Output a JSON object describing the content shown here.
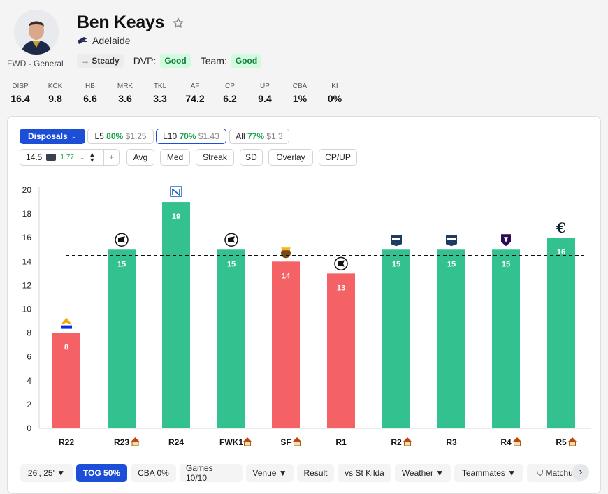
{
  "player": {
    "name": "Ben Keays",
    "team": "Adelaide",
    "position": "FWD - General",
    "trend": "→ Steady",
    "dvp_label": "DVP:",
    "dvp_value": "Good",
    "team_label": "Team:",
    "team_value": "Good"
  },
  "stats": [
    {
      "key": "DISP",
      "value": "16.4"
    },
    {
      "key": "KCK",
      "value": "9.8"
    },
    {
      "key": "HB",
      "value": "6.6"
    },
    {
      "key": "MRK",
      "value": "3.6"
    },
    {
      "key": "TKL",
      "value": "3.3"
    },
    {
      "key": "AF",
      "value": "74.2"
    },
    {
      "key": "CP",
      "value": "6.2"
    },
    {
      "key": "UP",
      "value": "9.4"
    },
    {
      "key": "CBA",
      "value": "1%"
    },
    {
      "key": "KI",
      "value": "0%"
    }
  ],
  "controls": {
    "stat_select": "Disposals",
    "l5": {
      "label": "L5",
      "pct": "80%",
      "price": "$1.25"
    },
    "l10": {
      "label": "L10",
      "pct": "70%",
      "price": "$1.43"
    },
    "all": {
      "label": "All",
      "pct": "77%",
      "price": "$1.3"
    },
    "line_value": "14.5",
    "line_odds": "1.77",
    "plus": "+",
    "toggles": [
      "Avg",
      "Med",
      "Streak",
      "SD",
      "Overlay",
      "CP/UP"
    ]
  },
  "filters": [
    "26', 25' ▼",
    "TOG 50%",
    "CBA 0%",
    "Games 10/10",
    "Venue ▼",
    "Result",
    "vs St Kilda",
    "Weather ▼",
    "Teammates ▼",
    "⛉ Matchu"
  ],
  "chart_data": {
    "type": "bar",
    "categories": [
      "R22",
      "R23",
      "R24",
      "FWK1",
      "SF",
      "R1",
      "R2",
      "R3",
      "R4",
      "R5"
    ],
    "home": [
      false,
      true,
      false,
      true,
      true,
      false,
      true,
      false,
      true,
      true
    ],
    "values": [
      8,
      15,
      19,
      15,
      14,
      13,
      15,
      15,
      15,
      16
    ],
    "line": 14.5,
    "ylim": [
      0,
      20
    ],
    "yticks": [
      0,
      2,
      4,
      6,
      8,
      10,
      12,
      14,
      16,
      18,
      20
    ],
    "opponents": [
      "West Coast",
      "Collingwood",
      "North Melbourne",
      "Collingwood",
      "Hawthorn",
      "Collingwood",
      "Geelong",
      "Geelong",
      "Fremantle",
      "Carlton"
    ],
    "colors": {
      "over": "#34c190",
      "under": "#f46266"
    }
  }
}
